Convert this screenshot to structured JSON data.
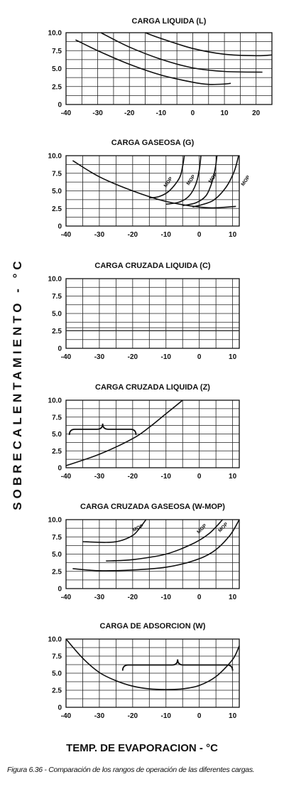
{
  "figure": {
    "y_axis_label": "SOBRECALENTAMIENTO - °C",
    "x_axis_label": "TEMP. DE EVAPORACION - °C",
    "caption": "Figura 6.36 - Comparación de los rangos de operación de las diferentes cargas."
  },
  "chart_data": [
    {
      "type": "line",
      "title": "CARGA LIQUIDA (L)",
      "xlim": [
        -40,
        25
      ],
      "ylim": [
        0,
        10
      ],
      "x_ticks": [
        -40,
        -30,
        -20,
        -10,
        0,
        10,
        20
      ],
      "y_ticks": [
        "0",
        "2.5",
        "5.0",
        "7.5",
        "10.0"
      ],
      "grid": true,
      "series": [
        {
          "x": [
            -37,
            -30,
            -20,
            -10,
            0,
            5,
            10,
            12
          ],
          "y": [
            9.0,
            7.5,
            5.6,
            4.1,
            3.1,
            2.8,
            2.85,
            2.95
          ]
        },
        {
          "x": [
            -29,
            -20,
            -10,
            0,
            10,
            22
          ],
          "y": [
            10.0,
            8.0,
            6.3,
            5.1,
            4.6,
            4.5
          ]
        },
        {
          "x": [
            -15,
            -10,
            0,
            10,
            20,
            25
          ],
          "y": [
            10.0,
            9.2,
            7.8,
            7.0,
            6.8,
            6.9
          ]
        }
      ]
    },
    {
      "type": "line",
      "title": "CARGA GASEOSA (G)",
      "xlim": [
        -40,
        12
      ],
      "ylim": [
        0,
        10
      ],
      "x_ticks": [
        -40,
        -30,
        -20,
        -10,
        0,
        10
      ],
      "y_ticks": [
        "0",
        "2.5",
        "5.0",
        "7.5",
        "10.0"
      ],
      "grid": true,
      "series": [
        {
          "x": [
            -38,
            -30,
            -20,
            -10,
            0,
            5,
            11
          ],
          "y": [
            9.3,
            7.0,
            5.0,
            3.5,
            2.7,
            2.6,
            2.8
          ]
        },
        {
          "x": [
            -15,
            -12,
            -9,
            -6,
            -5,
            -4.5
          ],
          "y": [
            4.0,
            4.2,
            5.0,
            6.8,
            8.5,
            10.0
          ]
        },
        {
          "x": [
            -10,
            -6,
            -3,
            -1,
            0,
            0.5
          ],
          "y": [
            3.1,
            3.4,
            4.3,
            6.0,
            8.0,
            10.0
          ]
        },
        {
          "x": [
            -5,
            -1,
            2,
            3.8,
            4.8,
            5.3
          ],
          "y": [
            2.9,
            3.3,
            4.3,
            6.2,
            8.2,
            10.0
          ]
        },
        {
          "x": [
            -2,
            4,
            8,
            10.5,
            11.8
          ],
          "y": [
            2.7,
            3.6,
            5.5,
            7.8,
            10.0
          ]
        }
      ],
      "annotations": [
        "MOP",
        "MOP",
        "MOP",
        "MOP"
      ]
    },
    {
      "type": "line",
      "title": "CARGA CRUZADA LIQUIDA (C)",
      "xlim": [
        -40,
        12
      ],
      "ylim": [
        0,
        10
      ],
      "x_ticks": [
        -40,
        -30,
        -20,
        -10,
        0,
        10
      ],
      "y_ticks": [
        "0",
        "2.5",
        "5.0",
        "7.5",
        "10.0"
      ],
      "grid": true,
      "series": [
        {
          "x": [
            -40,
            12
          ],
          "y": [
            2.55,
            2.55
          ]
        },
        {
          "x": [
            -40,
            12
          ],
          "y": [
            2.95,
            2.95
          ]
        }
      ]
    },
    {
      "type": "line",
      "title": "CARGA CRUZADA LIQUIDA (Z)",
      "xlim": [
        -40,
        12
      ],
      "ylim": [
        0,
        10
      ],
      "x_ticks": [
        -40,
        -30,
        -20,
        -10,
        0,
        10
      ],
      "y_ticks": [
        "0",
        "2.5",
        "5.0",
        "7.5",
        "10.0"
      ],
      "grid": true,
      "series": [
        {
          "x": [
            -40,
            -30,
            -20,
            -15,
            -10,
            -5
          ],
          "y": [
            0.3,
            2.0,
            4.3,
            6.0,
            8.0,
            10.0
          ]
        }
      ],
      "brace": {
        "x": [
          -39,
          -19
        ],
        "y": 5.7
      }
    },
    {
      "type": "line",
      "title": "CARGA CRUZADA GASEOSA (W-MOP)",
      "xlim": [
        -40,
        12
      ],
      "ylim": [
        0,
        10
      ],
      "x_ticks": [
        -40,
        -30,
        -20,
        -10,
        0,
        10
      ],
      "y_ticks": [
        "0",
        "2.5",
        "5.0",
        "7.5",
        "10.0"
      ],
      "grid": true,
      "series": [
        {
          "x": [
            -35,
            -28,
            -24,
            -20,
            -18,
            -16
          ],
          "y": [
            6.8,
            6.7,
            6.9,
            7.7,
            8.7,
            10.0
          ]
        },
        {
          "x": [
            -28,
            -20,
            -10,
            -2,
            3,
            7
          ],
          "y": [
            4.0,
            4.2,
            5.0,
            6.5,
            8.0,
            10.0
          ]
        },
        {
          "x": [
            -38,
            -30,
            -20,
            -10,
            -2,
            4,
            9,
            12
          ],
          "y": [
            2.9,
            2.6,
            2.7,
            3.1,
            4.0,
            5.3,
            7.6,
            10.0
          ]
        }
      ],
      "annotations": [
        "MOP",
        "MOP",
        "MOP"
      ]
    },
    {
      "type": "line",
      "title": "CARGA DE ADSORCION (W)",
      "xlim": [
        -40,
        12
      ],
      "ylim": [
        0,
        10
      ],
      "x_ticks": [
        -40,
        -30,
        -20,
        -10,
        0,
        10
      ],
      "y_ticks": [
        "0",
        "2.5",
        "5.0",
        "7.5",
        "10.0"
      ],
      "grid": true,
      "series": [
        {
          "x": [
            -40,
            -35,
            -30,
            -25,
            -20,
            -15,
            -10,
            -5,
            0,
            5,
            10,
            12
          ],
          "y": [
            10.0,
            7.2,
            5.1,
            3.9,
            3.1,
            2.7,
            2.6,
            2.7,
            3.2,
            4.5,
            7.0,
            9.0
          ]
        }
      ],
      "brace": {
        "x": [
          -23,
          10
        ],
        "y": 6.2
      }
    }
  ],
  "styles": {
    "line_color": "#111111",
    "background": "#ffffff"
  }
}
